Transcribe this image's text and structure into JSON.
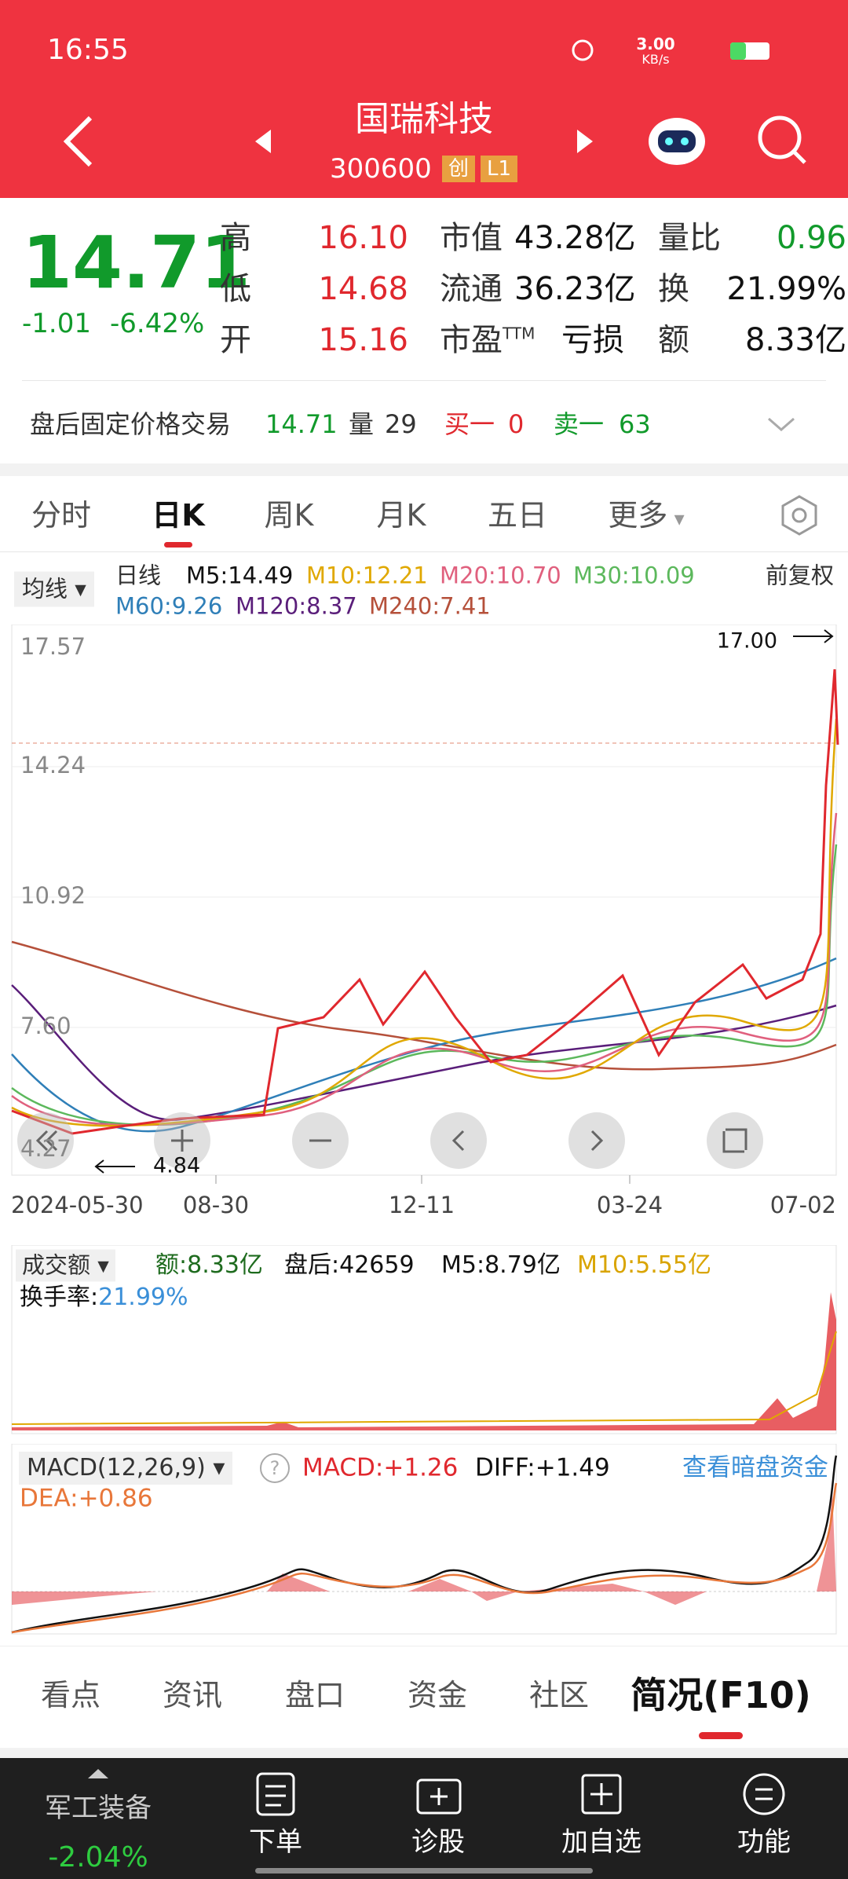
{
  "status": {
    "time": "16:55",
    "speed": "3.00",
    "speed_unit": "KB/s"
  },
  "header": {
    "title": "国瑞科技",
    "code": "300600",
    "badges": [
      "创",
      "L1"
    ]
  },
  "quote": {
    "price": "14.71",
    "change": "-1.01",
    "change_pct": "-6.42%",
    "stats": [
      {
        "label": "高",
        "value": "16.10"
      },
      {
        "label": "低",
        "value": "14.68"
      },
      {
        "label": "开",
        "value": "15.16"
      },
      {
        "label": "市值",
        "value": "43.28亿"
      },
      {
        "label": "流通",
        "value": "36.23亿"
      },
      {
        "label": "市盈",
        "sup": "TTM",
        "value": "亏损"
      },
      {
        "label": "量比",
        "value": "0.96"
      },
      {
        "label": "换",
        "value": "21.99%"
      },
      {
        "label": "额",
        "value": "8.33亿"
      }
    ]
  },
  "after_hours": {
    "label": "盘后固定价格交易",
    "price": "14.71",
    "vol_label": "量",
    "vol": "29",
    "buy_label": "买一",
    "buy": "0",
    "sell_label": "卖一",
    "sell": "63"
  },
  "tabs": {
    "items": [
      "分时",
      "日K",
      "周K",
      "月K",
      "五日",
      "更多"
    ],
    "active": 1
  },
  "ma_legend": {
    "selector": "均线",
    "period": "日线",
    "adjust": "前复权",
    "items": [
      {
        "text": "M5:14.49",
        "color": "#111111"
      },
      {
        "text": "M10:12.21",
        "color": "#e0a800"
      },
      {
        "text": "M20:10.70",
        "color": "#e0607e"
      },
      {
        "text": "M30:10.09",
        "color": "#5cb85c"
      },
      {
        "text": "M60:9.26",
        "color": "#2f7fb8"
      },
      {
        "text": "M120:8.37",
        "color": "#5a1e7a"
      },
      {
        "text": "M240:7.41",
        "color": "#b5503a"
      }
    ]
  },
  "kline": {
    "yticks": [
      "17.57",
      "14.24",
      "10.92",
      "7.60",
      "4.27"
    ],
    "max_label": "17.00",
    "min_label": "4.84",
    "dates": [
      "2024-05-30",
      "08-30",
      "12-11",
      "03-24",
      "07-02"
    ]
  },
  "volume": {
    "selector": "成交额",
    "amount": "额:8.33亿",
    "after": "盘后:42659",
    "m5": "M5:8.79亿",
    "m10": "M10:5.55亿",
    "turnover_label": "换手率:",
    "turnover": "21.99%"
  },
  "macd": {
    "selector": "MACD(12,26,9)",
    "macd": "MACD:+1.26",
    "diff": "DIFF:+1.49",
    "link": "查看暗盘资金",
    "dea": "DEA:+0.86"
  },
  "bottom_tabs": {
    "items": [
      "看点",
      "资讯",
      "盘口",
      "资金",
      "社区",
      "简况(F10)"
    ],
    "active": 5
  },
  "nav": {
    "sector": "军工装备",
    "sector_change": "-2.04%",
    "items": [
      "下单",
      "诊股",
      "加自选",
      "功能"
    ]
  }
}
